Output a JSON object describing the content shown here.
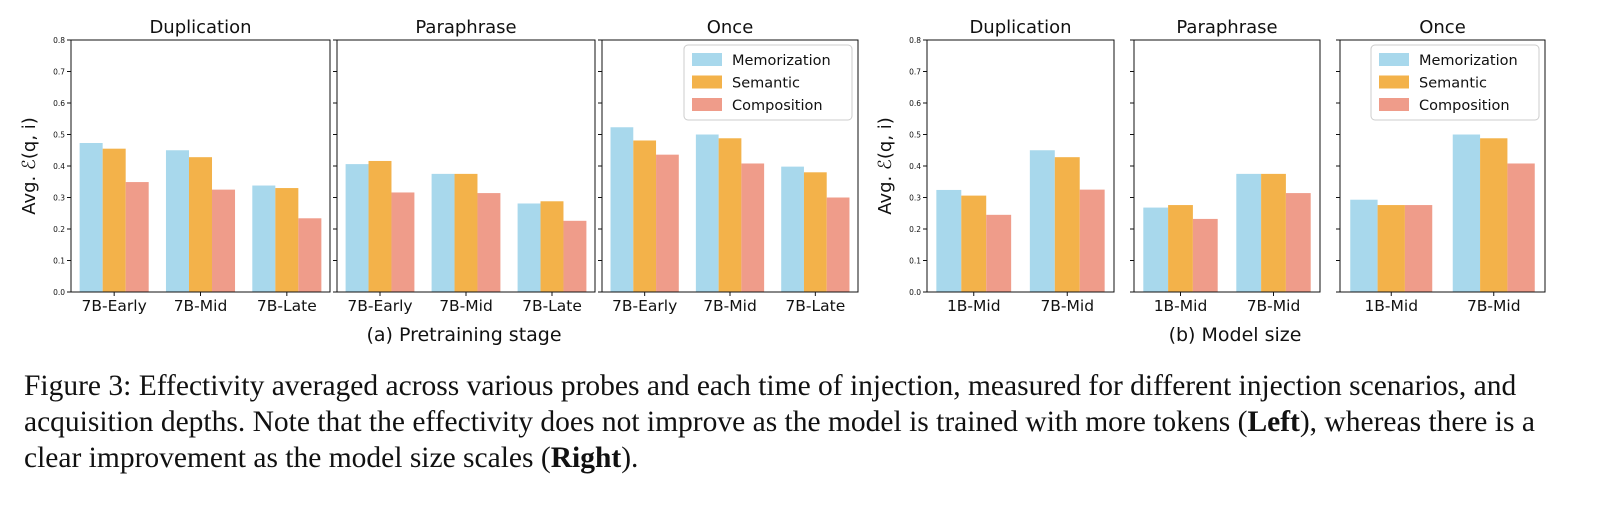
{
  "colors": {
    "Memorization": "#a8d8ec",
    "Semantic": "#f3b24a",
    "Composition": "#ef9c8a"
  },
  "group_labels": [
    "(a) Pretraining stage",
    "(b) Model size"
  ],
  "legend": [
    "Memorization",
    "Semantic",
    "Composition"
  ],
  "yticks": [
    "0.0",
    "0.1",
    "0.2",
    "0.3",
    "0.4",
    "0.5",
    "0.6",
    "0.7",
    "0.8"
  ],
  "ylabel": "Avg. ℰ(q, i)",
  "chart_data": [
    {
      "type": "bar",
      "title": "Duplication",
      "categories": [
        "7B-Early",
        "7B-Mid",
        "7B-Late"
      ],
      "ylim": [
        0,
        0.8
      ],
      "ylabel": "Avg. ℰ(q, i)",
      "series": [
        {
          "name": "Memorization",
          "values": [
            0.473,
            0.45,
            0.338
          ]
        },
        {
          "name": "Semantic",
          "values": [
            0.455,
            0.428,
            0.33
          ]
        },
        {
          "name": "Composition",
          "values": [
            0.349,
            0.325,
            0.234
          ]
        }
      ]
    },
    {
      "type": "bar",
      "title": "Paraphrase",
      "categories": [
        "7B-Early",
        "7B-Mid",
        "7B-Late"
      ],
      "ylim": [
        0,
        0.8
      ],
      "series": [
        {
          "name": "Memorization",
          "values": [
            0.406,
            0.375,
            0.281
          ]
        },
        {
          "name": "Semantic",
          "values": [
            0.416,
            0.375,
            0.288
          ]
        },
        {
          "name": "Composition",
          "values": [
            0.316,
            0.314,
            0.226
          ]
        }
      ]
    },
    {
      "type": "bar",
      "title": "Once",
      "categories": [
        "7B-Early",
        "7B-Mid",
        "7B-Late"
      ],
      "ylim": [
        0,
        0.8
      ],
      "legend": "top-right",
      "series": [
        {
          "name": "Memorization",
          "values": [
            0.523,
            0.5,
            0.398
          ]
        },
        {
          "name": "Semantic",
          "values": [
            0.481,
            0.488,
            0.38
          ]
        },
        {
          "name": "Composition",
          "values": [
            0.436,
            0.408,
            0.3
          ]
        }
      ]
    },
    {
      "type": "bar",
      "title": "Duplication",
      "categories": [
        "1B-Mid",
        "7B-Mid"
      ],
      "ylim": [
        0,
        0.8
      ],
      "ylabel": "Avg. ℰ(q, i)",
      "series": [
        {
          "name": "Memorization",
          "values": [
            0.324,
            0.45
          ]
        },
        {
          "name": "Semantic",
          "values": [
            0.306,
            0.428
          ]
        },
        {
          "name": "Composition",
          "values": [
            0.245,
            0.325
          ]
        }
      ]
    },
    {
      "type": "bar",
      "title": "Paraphrase",
      "categories": [
        "1B-Mid",
        "7B-Mid"
      ],
      "ylim": [
        0,
        0.8
      ],
      "series": [
        {
          "name": "Memorization",
          "values": [
            0.268,
            0.375
          ]
        },
        {
          "name": "Semantic",
          "values": [
            0.276,
            0.375
          ]
        },
        {
          "name": "Composition",
          "values": [
            0.232,
            0.314
          ]
        }
      ]
    },
    {
      "type": "bar",
      "title": "Once",
      "categories": [
        "1B-Mid",
        "7B-Mid"
      ],
      "ylim": [
        0,
        0.8
      ],
      "legend": "top-right",
      "series": [
        {
          "name": "Memorization",
          "values": [
            0.293,
            0.5
          ]
        },
        {
          "name": "Semantic",
          "values": [
            0.276,
            0.488
          ]
        },
        {
          "name": "Composition",
          "values": [
            0.276,
            0.408
          ]
        }
      ]
    }
  ],
  "caption": {
    "prefix": "Figure 3: ",
    "body": "Effectivity averaged across various probes and each time of injection, measured for different injection scenarios, and acquisition depths. Note that the effectivity does not improve as the model is trained with more tokens (",
    "left": "Left",
    "middle": "), whereas there is a clear improvement as the model size scales (",
    "right": "Right",
    "suffix": ")."
  }
}
